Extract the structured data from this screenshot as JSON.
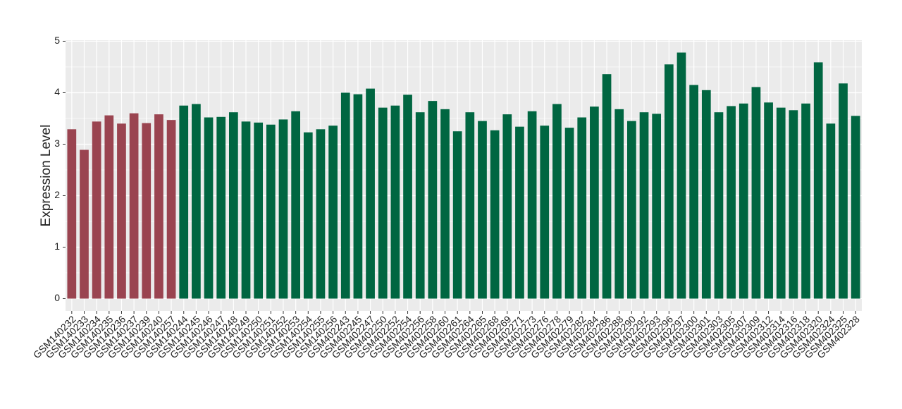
{
  "chart_data": {
    "type": "bar",
    "y_label": "Expression Level",
    "categories": [
      "GSM140232",
      "GSM140233",
      "GSM140234",
      "GSM140235",
      "GSM140236",
      "GSM140237",
      "GSM140239",
      "GSM140240",
      "GSM140257",
      "GSM140244",
      "GSM140245",
      "GSM140246",
      "GSM140247",
      "GSM140248",
      "GSM140249",
      "GSM140250",
      "GSM140251",
      "GSM140252",
      "GSM140253",
      "GSM140254",
      "GSM140255",
      "GSM140256",
      "GSM402243",
      "GSM402245",
      "GSM402247",
      "GSM402250",
      "GSM402252",
      "GSM402254",
      "GSM402256",
      "GSM402258",
      "GSM402260",
      "GSM402261",
      "GSM402264",
      "GSM402265",
      "GSM402268",
      "GSM402269",
      "GSM402271",
      "GSM402273",
      "GSM402276",
      "GSM402278",
      "GSM402279",
      "GSM402282",
      "GSM402284",
      "GSM402286",
      "GSM402288",
      "GSM402290",
      "GSM402292",
      "GSM402293",
      "GSM402296",
      "GSM402297",
      "GSM402300",
      "GSM402301",
      "GSM402303",
      "GSM402305",
      "GSM402307",
      "GSM402309",
      "GSM402312",
      "GSM402314",
      "GSM402316",
      "GSM402318",
      "GSM402320",
      "GSM402324",
      "GSM402325",
      "GSM402328"
    ],
    "values": [
      3.29,
      2.89,
      3.44,
      3.56,
      3.4,
      3.6,
      3.41,
      3.58,
      3.47,
      3.75,
      3.78,
      3.52,
      3.53,
      3.62,
      3.44,
      3.42,
      3.38,
      3.48,
      3.64,
      3.23,
      3.29,
      3.36,
      4.0,
      3.97,
      4.08,
      3.71,
      3.75,
      3.96,
      3.62,
      3.84,
      3.68,
      3.25,
      3.62,
      3.45,
      3.27,
      3.58,
      3.34,
      3.64,
      3.36,
      3.78,
      3.32,
      3.52,
      3.73,
      4.36,
      3.68,
      3.45,
      3.62,
      3.59,
      4.55,
      4.78,
      4.15,
      4.05,
      3.62,
      3.74,
      3.79,
      4.11,
      3.81,
      3.71,
      3.66,
      3.79,
      4.59,
      3.4,
      4.18,
      3.55
    ],
    "bar_colors": [
      "#9a4450",
      "#9a4450",
      "#9a4450",
      "#9a4450",
      "#9a4450",
      "#9a4450",
      "#9a4450",
      "#9a4450",
      "#9a4450",
      "#006641",
      "#006641",
      "#006641",
      "#006641",
      "#006641",
      "#006641",
      "#006641",
      "#006641",
      "#006641",
      "#006641",
      "#006641",
      "#006641",
      "#006641",
      "#006641",
      "#006641",
      "#006641",
      "#006641",
      "#006641",
      "#006641",
      "#006641",
      "#006641",
      "#006641",
      "#006641",
      "#006641",
      "#006641",
      "#006641",
      "#006641",
      "#006641",
      "#006641",
      "#006641",
      "#006641",
      "#006641",
      "#006641",
      "#006641",
      "#006641",
      "#006641",
      "#006641",
      "#006641",
      "#006641",
      "#006641",
      "#006641",
      "#006641",
      "#006641",
      "#006641",
      "#006641",
      "#006641",
      "#006641",
      "#006641",
      "#006641",
      "#006641",
      "#006641",
      "#006641",
      "#006641",
      "#006641",
      "#006641"
    ],
    "ylim": [
      -0.24,
      5.02
    ],
    "yticks": [
      0,
      1,
      2,
      3,
      4,
      5
    ],
    "grid": true
  }
}
